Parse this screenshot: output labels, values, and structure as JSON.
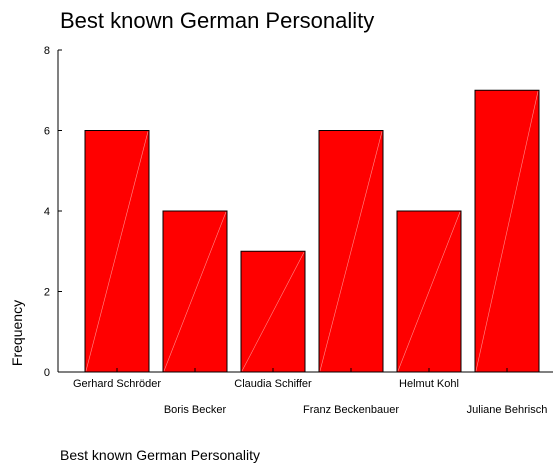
{
  "chart_data": {
    "type": "bar",
    "title": "Best known German Personality",
    "xlabel": "Best known German Personality",
    "ylabel": "Frequency",
    "categories": [
      "Gerhard Schröder",
      "Boris Becker",
      "Claudia Schiffer",
      "Franz Beckenbauer",
      "Helmut Kohl",
      "Juliane Behrisch"
    ],
    "values": [
      6,
      4,
      3,
      6,
      4,
      7
    ],
    "ylim": [
      0,
      8
    ],
    "yticks": [
      "0",
      "2",
      "4",
      "6",
      "8"
    ],
    "grid": false,
    "legend": "none",
    "colors": {
      "bar_fill": "#ff0000",
      "bar_stroke": "#000000",
      "axis": "#000000",
      "bar_highlight": "#ff8a8a"
    }
  }
}
